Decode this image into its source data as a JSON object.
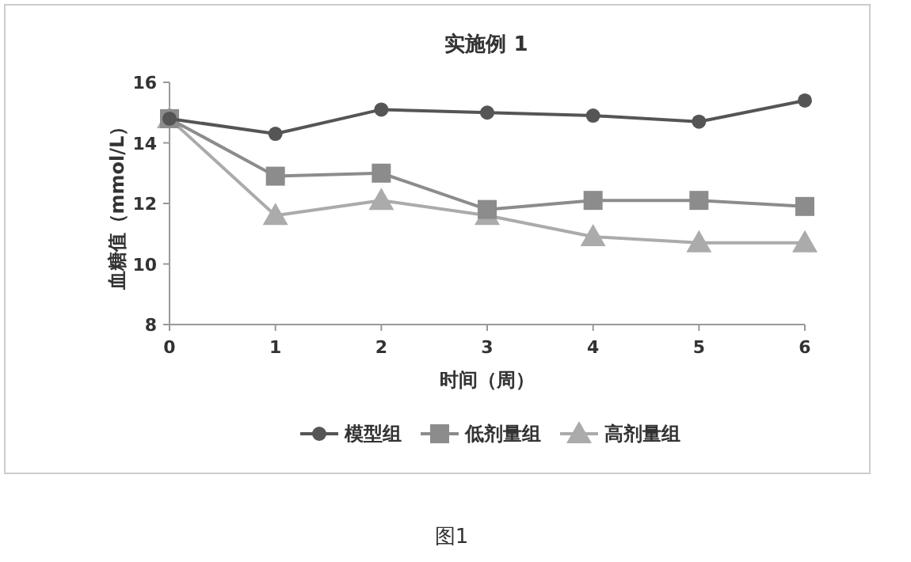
{
  "chart_data": {
    "type": "line",
    "title": "实施例 1",
    "xlabel": "时间（周）",
    "ylabel": "血糖值（mmol/L）",
    "x": [
      0,
      1,
      2,
      3,
      4,
      5,
      6
    ],
    "xlim": [
      0,
      6
    ],
    "xticks": [
      0,
      1,
      2,
      3,
      4,
      5,
      6
    ],
    "ylim": [
      8,
      16
    ],
    "yticks": [
      8,
      10,
      12,
      14,
      16
    ],
    "series": [
      {
        "name": "模型组",
        "color": "#555555",
        "marker": "circle",
        "values": [
          14.8,
          14.3,
          15.1,
          15.0,
          14.9,
          14.7,
          15.4
        ]
      },
      {
        "name": "低剂量组",
        "color": "#8c8c8c",
        "marker": "square",
        "values": [
          14.8,
          12.9,
          13.0,
          11.8,
          12.1,
          12.1,
          11.9
        ]
      },
      {
        "name": "高剂量组",
        "color": "#ababab",
        "marker": "triangle",
        "values": [
          14.8,
          11.6,
          12.1,
          11.6,
          10.9,
          10.7,
          10.7
        ]
      }
    ],
    "legend": "bottom",
    "annotations": [
      "图1"
    ]
  }
}
